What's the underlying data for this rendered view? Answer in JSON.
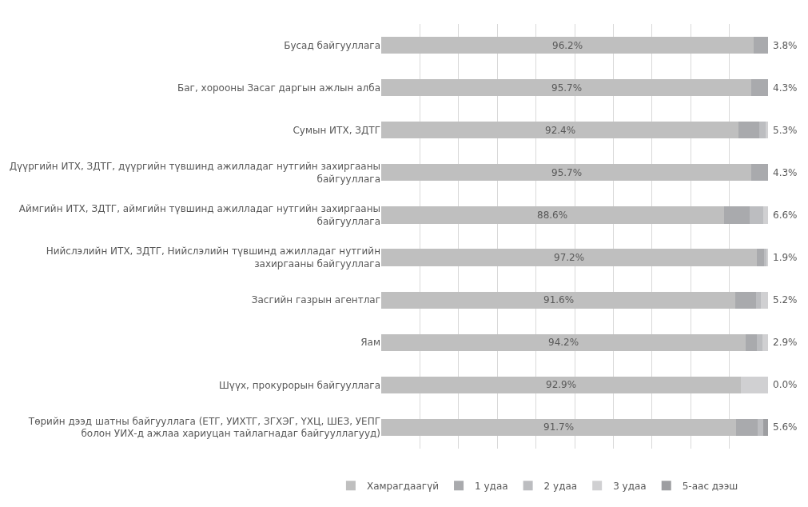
{
  "chart_data": {
    "type": "bar",
    "orientation": "horizontal",
    "stacked": true,
    "grid": "x",
    "legend": "bottom",
    "tick_labels": "y",
    "xlim": [
      0,
      100
    ],
    "categories": [
      "Бусад байгууллага",
      "Баг, хорооны Засаг даргын ажлын алба",
      "Сумын ИТХ, ЗДТГ",
      "Дүүргийн ИТХ, ЗДТГ, дүүргийн түвшинд ажилладаг нутгийн захиргааны байгууллага",
      "Аймгийн ИТХ, ЗДТГ, аймгийн түвшинд ажилладаг нутгийн захиргааны байгууллага",
      "Нийслэлийн ИТХ, ЗДТГ, Нийслэлийн түвшинд ажилладаг нутгийн захиргааны байгууллага",
      "Засгийн газрын агентлаг",
      "Яам",
      "Шүүх, прокурорын байгууллага",
      "Төрийн дээд шатны байгууллага (ЕТГ, УИХТГ, ЗГХЭГ, ҮХЦ, ШЕЗ, УЕПГ болон УИХ-д ажлаа хариуцан тайлагнадаг байгууллагууд)"
    ],
    "series": [
      {
        "name": "Хамрагдаагүй",
        "color": "#bfbfbf",
        "values": [
          96.2,
          95.7,
          92.4,
          95.7,
          88.6,
          97.2,
          91.6,
          94.2,
          92.9,
          91.7
        ],
        "value_labels": [
          "96.2%",
          "95.7%",
          "92.4%",
          "95.7%",
          "88.6%",
          "97.2%",
          "91.6%",
          "94.2%",
          "92.9%",
          "91.7%"
        ]
      },
      {
        "name": "1 удаа",
        "color": "#a9aaad",
        "values": [
          3.8,
          4.3,
          5.3,
          4.3,
          6.6,
          1.9,
          5.2,
          2.9,
          0.0,
          5.6
        ],
        "value_labels": [
          "3.8%",
          "4.3%",
          "5.3%",
          "4.3%",
          "6.6%",
          "1.9%",
          "5.2%",
          "2.9%",
          "0.0%",
          "5.6%"
        ]
      },
      {
        "name": "2 удаа",
        "color": "#bcbdc0",
        "values": [
          0,
          0,
          1.7,
          0,
          3.6,
          0.4,
          1.3,
          1.4,
          0,
          1.4
        ]
      },
      {
        "name": "3 удаа",
        "color": "#d0d0d2",
        "values": [
          0,
          0,
          0.6,
          0,
          1.2,
          0.5,
          1.9,
          1.5,
          7.1,
          0
        ]
      },
      {
        "name": "5-аас дээш",
        "color": "#9d9ea1",
        "values": [
          0,
          0,
          0,
          0,
          0,
          0,
          0,
          0,
          0,
          1.3
        ]
      }
    ]
  }
}
